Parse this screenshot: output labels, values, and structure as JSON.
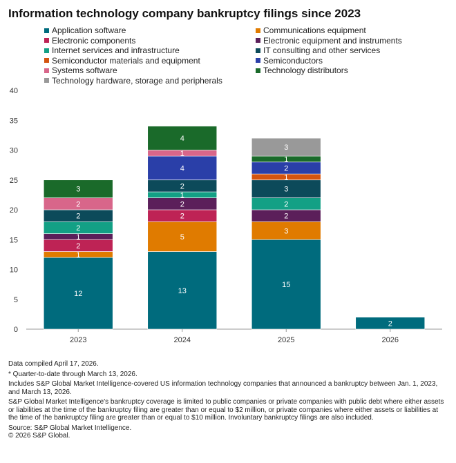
{
  "title": "Information technology company bankruptcy filings since 2023",
  "chart_data": {
    "type": "bar",
    "stacked": true,
    "categories": [
      "2023",
      "2024",
      "2025",
      "2026"
    ],
    "ylim": [
      0,
      40
    ],
    "yticks": [
      0,
      5,
      10,
      15,
      20,
      25,
      30,
      35,
      40
    ],
    "series": [
      {
        "name": "Application software",
        "color": "#006b7d",
        "values": [
          12,
          13,
          15,
          2
        ]
      },
      {
        "name": "Communications equipment",
        "color": "#e07b00",
        "values": [
          1,
          5,
          3,
          0
        ]
      },
      {
        "name": "Electronic components",
        "color": "#be2355",
        "values": [
          2,
          2,
          0,
          0
        ]
      },
      {
        "name": "Electronic equipment and instruments",
        "color": "#5b1f5a",
        "values": [
          1,
          2,
          2,
          0
        ]
      },
      {
        "name": "Internet services and infrastructure",
        "color": "#13a085",
        "values": [
          2,
          1,
          2,
          0
        ]
      },
      {
        "name": "IT consulting and other services",
        "color": "#0c4a5a",
        "values": [
          2,
          2,
          3,
          0
        ]
      },
      {
        "name": "Semiconductor materials and equipment",
        "color": "#d4540f",
        "values": [
          0,
          0,
          1,
          0
        ]
      },
      {
        "name": "Semiconductors",
        "color": "#2a3fa8",
        "values": [
          0,
          4,
          2,
          0
        ]
      },
      {
        "name": "Systems software",
        "color": "#d8668a",
        "values": [
          2,
          1,
          0,
          0
        ]
      },
      {
        "name": "Technology distributors",
        "color": "#1a6a2a",
        "values": [
          3,
          4,
          1,
          0
        ]
      },
      {
        "name": "Technology hardware, storage and peripherals",
        "color": "#999999",
        "values": [
          0,
          0,
          3,
          0
        ]
      }
    ]
  },
  "notes": {
    "compiled": "Data compiled April 17, 2026.",
    "qtd": "* Quarter-to-date through March 13, 2026.",
    "includes": "Includes S&P Global Market Intelligence-covered US information technology companies that announced a bankruptcy between Jan. 1, 2023, and March 13, 2026.",
    "coverage": "S&P Global Market Intelligence's bankruptcy coverage is limited to public companies or private companies with public debt where either assets or liabilities at the time of the bankruptcy filing are greater than or equal to $2 million, or private companies where either assets or liabilities at the time of the bankruptcy filing are greater than or equal to $10 million. Involuntary bankruptcy filings are also included.",
    "source": "Source: S&P Global Market Intelligence.",
    "copyright": "© 2026 S&P Global."
  }
}
